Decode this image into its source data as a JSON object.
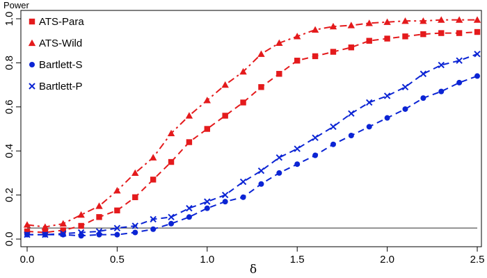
{
  "chart_data": {
    "type": "line",
    "ylabel": "Power",
    "xlabel": "δ",
    "xlim": [
      0,
      2.5
    ],
    "ylim": [
      0,
      1
    ],
    "x_ticks": [
      "0.0",
      "0.5",
      "1.0",
      "1.5",
      "2.0",
      "2.5"
    ],
    "y_ticks": [
      "0.0",
      "0.2",
      "0.4",
      "0.6",
      "0.8",
      "1.0"
    ],
    "reference_line": 0.05,
    "legend_position": "top-left",
    "x": [
      0.0,
      0.1,
      0.2,
      0.3,
      0.4,
      0.5,
      0.6,
      0.7,
      0.8,
      0.9,
      1.0,
      1.1,
      1.2,
      1.3,
      1.4,
      1.5,
      1.6,
      1.7,
      1.8,
      1.9,
      2.0,
      2.1,
      2.2,
      2.3,
      2.4,
      2.5
    ],
    "series": [
      {
        "name": "ATS-Para",
        "color": "#e41a1c",
        "marker": "square",
        "line_style": "dashed",
        "values": [
          0.035,
          0.03,
          0.04,
          0.06,
          0.1,
          0.13,
          0.19,
          0.27,
          0.35,
          0.44,
          0.5,
          0.56,
          0.62,
          0.69,
          0.75,
          0.81,
          0.83,
          0.85,
          0.87,
          0.9,
          0.91,
          0.92,
          0.93,
          0.935,
          0.935,
          0.94
        ]
      },
      {
        "name": "ATS-Wild",
        "color": "#e41a1c",
        "marker": "triangle",
        "line_style": "dashdot",
        "values": [
          0.065,
          0.055,
          0.07,
          0.11,
          0.15,
          0.22,
          0.3,
          0.37,
          0.48,
          0.56,
          0.63,
          0.7,
          0.76,
          0.84,
          0.89,
          0.92,
          0.95,
          0.965,
          0.97,
          0.98,
          0.985,
          0.99,
          0.99,
          0.995,
          0.995,
          0.995
        ]
      },
      {
        "name": "Bartlett-S",
        "color": "#0b24d4",
        "marker": "circle",
        "line_style": "dashed",
        "values": [
          0.02,
          0.02,
          0.02,
          0.015,
          0.02,
          0.02,
          0.03,
          0.045,
          0.07,
          0.1,
          0.14,
          0.17,
          0.19,
          0.25,
          0.3,
          0.34,
          0.38,
          0.43,
          0.47,
          0.51,
          0.55,
          0.59,
          0.64,
          0.67,
          0.71,
          0.74
        ]
      },
      {
        "name": "Bartlett-P",
        "color": "#0b24d4",
        "marker": "cross",
        "line_style": "dashed",
        "values": [
          0.02,
          0.02,
          0.025,
          0.03,
          0.035,
          0.05,
          0.06,
          0.09,
          0.1,
          0.14,
          0.17,
          0.2,
          0.26,
          0.31,
          0.37,
          0.41,
          0.46,
          0.51,
          0.57,
          0.62,
          0.65,
          0.69,
          0.75,
          0.79,
          0.81,
          0.84
        ]
      }
    ]
  }
}
